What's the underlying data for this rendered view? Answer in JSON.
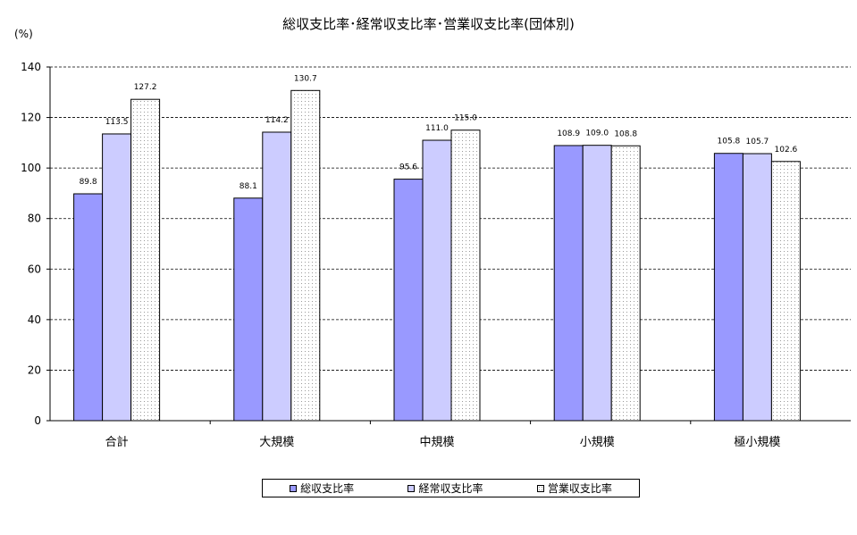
{
  "chart_data": {
    "type": "bar",
    "title": "総収支比率･経常収支比率･営業収支比率(団体別)",
    "ylabel": "(%)",
    "xlabel": "",
    "ylim": [
      0,
      140
    ],
    "yticks": [
      "0",
      "20",
      "40",
      "60",
      "80",
      "100",
      "120",
      "140"
    ],
    "categories": [
      "合計",
      "大規模",
      "中規模",
      "小規模",
      "極小規模"
    ],
    "series": [
      {
        "name": "総収支比率",
        "values": [
          89.8,
          88.1,
          95.6,
          108.9,
          105.8
        ],
        "labels": [
          "89.8",
          "88.1",
          "95.6",
          "108.9",
          "105.8"
        ],
        "color": "#9999ff",
        "pattern": "solid"
      },
      {
        "name": "経常収支比率",
        "values": [
          113.5,
          114.2,
          111.0,
          109.0,
          105.7
        ],
        "labels": [
          "113.5",
          "114.2",
          "111.0",
          "109.0",
          "105.7"
        ],
        "color": "#ccccff",
        "pattern": "solid"
      },
      {
        "name": "営業収支比率",
        "values": [
          127.2,
          130.7,
          115.0,
          108.8,
          102.6
        ],
        "labels": [
          "127.2",
          "130.7",
          "115.0",
          "108.8",
          "102.6"
        ],
        "color": "#ffffff",
        "pattern": "dotted"
      }
    ],
    "grid": "horizontal-dashed",
    "legend_position": "bottom"
  }
}
